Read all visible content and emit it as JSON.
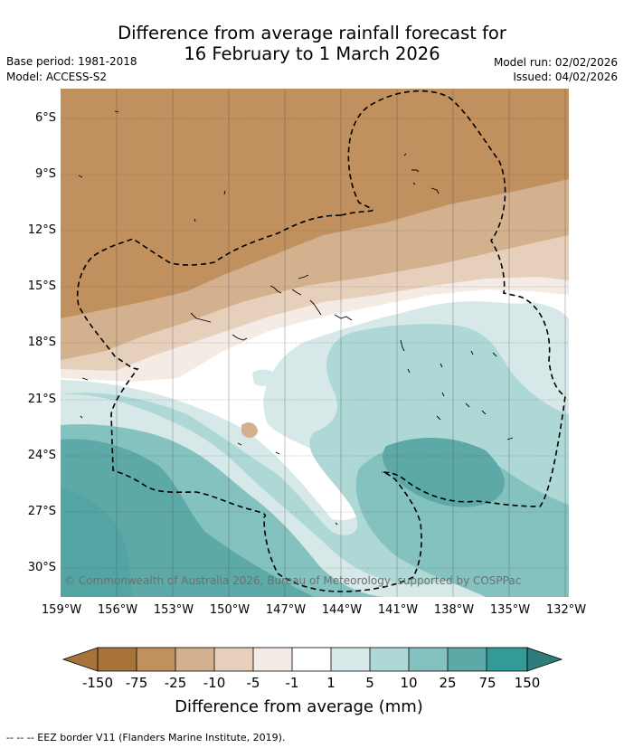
{
  "title": {
    "line1": "Difference from average rainfall forecast for",
    "line2": "16 February to 1 March 2026"
  },
  "info": {
    "base_period": "Base period: 1981-2018",
    "model": "Model: ACCESS-S2",
    "model_run": "Model run: 02/02/2026",
    "issued": "Issued: 04/02/2026"
  },
  "map": {
    "latitude_labels": [
      "6°S",
      "9°S",
      "12°S",
      "15°S",
      "18°S",
      "21°S",
      "24°S",
      "27°S",
      "30°S"
    ],
    "longitude_labels": [
      "159°W",
      "156°W",
      "153°W",
      "150°W",
      "147°W",
      "144°W",
      "141°W",
      "138°W",
      "135°W",
      "132°W"
    ],
    "copyright": "© Commonwealth of Australia 2026, Bureau of Meteorology, supported by COSPPac"
  },
  "colorbar": {
    "labels": [
      "-150",
      "-75",
      "-25",
      "-10",
      "-5",
      "-1",
      "1",
      "5",
      "10",
      "25",
      "75",
      "150"
    ],
    "colors": [
      "#a87339",
      "#c0905e",
      "#d3b08e",
      "#e6cfbb",
      "#f4ebe5",
      "#ffffff",
      "#d6e9e8",
      "#aed8d6",
      "#84c2c0",
      "#5ca9a7",
      "#349a96"
    ],
    "low_extend_color": "#a87339",
    "high_extend_color": "#2d7d7a",
    "title": "Difference from average (mm)"
  },
  "footnote": "--  --  -- EEZ border V11 (Flanders Marine Institute, 2019)."
}
